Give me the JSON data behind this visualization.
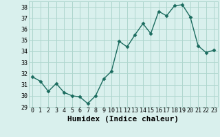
{
  "x": [
    0,
    1,
    2,
    3,
    4,
    5,
    6,
    7,
    8,
    9,
    10,
    11,
    12,
    13,
    14,
    15,
    16,
    17,
    18,
    19,
    20,
    21,
    22,
    23
  ],
  "y": [
    31.7,
    31.3,
    30.4,
    31.1,
    30.3,
    30.0,
    29.9,
    29.3,
    30.0,
    31.5,
    32.2,
    34.9,
    34.4,
    35.5,
    36.5,
    35.6,
    37.6,
    37.2,
    38.1,
    38.2,
    37.1,
    34.5,
    33.9,
    34.1
  ],
  "line_color": "#1a6b5e",
  "marker": "D",
  "marker_size": 2.5,
  "bg_color": "#d9f0ed",
  "grid_color": "#aed6ce",
  "xlabel": "Humidex (Indice chaleur)",
  "ylim": [
    29,
    38.5
  ],
  "yticks": [
    29,
    30,
    31,
    32,
    33,
    34,
    35,
    36,
    37,
    38
  ],
  "xticks": [
    0,
    1,
    2,
    3,
    4,
    5,
    6,
    7,
    8,
    9,
    10,
    11,
    12,
    13,
    14,
    15,
    16,
    17,
    18,
    19,
    20,
    21,
    22,
    23
  ],
  "tick_fontsize": 6,
  "xlabel_fontsize": 8,
  "line_width": 1.0
}
